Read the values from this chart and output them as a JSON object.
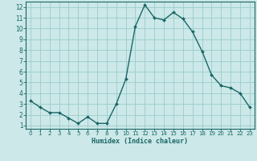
{
  "x": [
    0,
    1,
    2,
    3,
    4,
    5,
    6,
    7,
    8,
    9,
    10,
    11,
    12,
    13,
    14,
    15,
    16,
    17,
    18,
    19,
    20,
    21,
    22,
    23
  ],
  "y": [
    3.3,
    2.7,
    2.2,
    2.2,
    1.7,
    1.2,
    1.8,
    1.2,
    1.2,
    3.0,
    5.3,
    10.2,
    12.2,
    11.0,
    10.8,
    11.5,
    10.9,
    9.7,
    7.9,
    5.7,
    4.7,
    4.5,
    4.0,
    2.7
  ],
  "line_color": "#1a6666",
  "marker": "D",
  "marker_size": 2.0,
  "bg_color": "#cce8e8",
  "grid_color": "#99cccc",
  "xlabel": "Humidex (Indice chaleur)",
  "xlim": [
    -0.5,
    23.5
  ],
  "ylim": [
    0.7,
    12.5
  ],
  "yticks": [
    1,
    2,
    3,
    4,
    5,
    6,
    7,
    8,
    9,
    10,
    11,
    12
  ],
  "xticks": [
    0,
    1,
    2,
    3,
    4,
    5,
    6,
    7,
    8,
    9,
    10,
    11,
    12,
    13,
    14,
    15,
    16,
    17,
    18,
    19,
    20,
    21,
    22,
    23
  ],
  "axis_color": "#1a6666",
  "tick_color": "#1a6666",
  "label_color": "#1a6666",
  "xlabel_fontsize": 6.0,
  "tick_fontsize_x": 5.0,
  "tick_fontsize_y": 5.5,
  "linewidth": 1.0
}
